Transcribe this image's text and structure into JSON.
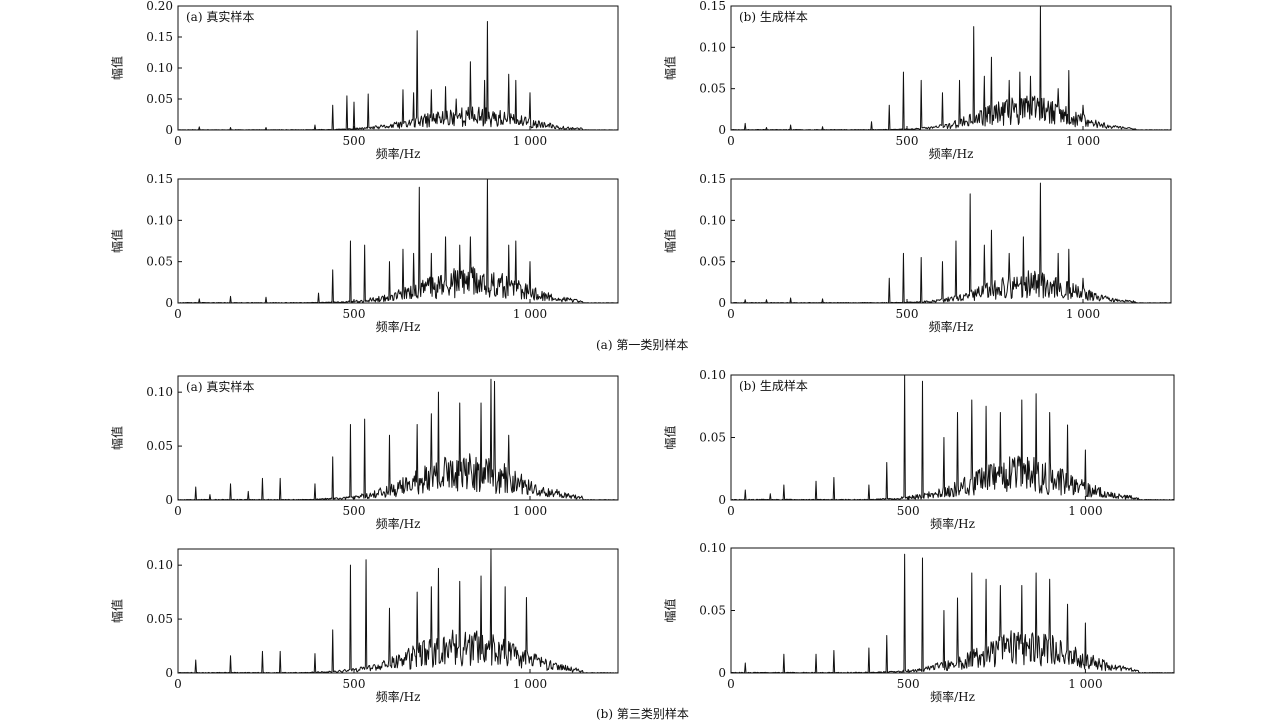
{
  "figure": {
    "captions": [
      "(a)  第一类别样本",
      "(b)  第三类别样本"
    ]
  },
  "chart_data": [
    {
      "type": "line",
      "group": 0,
      "panel_label": "(a)  真实样本",
      "xlabel": "频率/Hz",
      "ylabel": "幅值",
      "xlim": [
        0,
        1250
      ],
      "ylim": [
        0,
        0.2
      ],
      "xticks": [
        0,
        500,
        1000
      ],
      "xtick_labels": [
        "0",
        "500",
        "1 000"
      ],
      "yticks": [
        0,
        0.05,
        0.1,
        0.15,
        0.2
      ],
      "ytick_labels": [
        "0",
        "0.05",
        "0.10",
        "0.15",
        "0.20"
      ],
      "envelope_center": 830,
      "envelope_width": 200,
      "base_level": 0.022,
      "seed": 11,
      "peaks": [
        [
          60,
          0.005
        ],
        [
          150,
          0.004
        ],
        [
          250,
          0.004
        ],
        [
          390,
          0.008
        ],
        [
          440,
          0.04
        ],
        [
          480,
          0.055
        ],
        [
          500,
          0.045
        ],
        [
          540,
          0.058
        ],
        [
          640,
          0.065
        ],
        [
          670,
          0.06
        ],
        [
          680,
          0.16
        ],
        [
          720,
          0.065
        ],
        [
          760,
          0.07
        ],
        [
          790,
          0.05
        ],
        [
          830,
          0.11
        ],
        [
          870,
          0.08
        ],
        [
          880,
          0.175
        ],
        [
          940,
          0.09
        ],
        [
          960,
          0.08
        ],
        [
          1000,
          0.06
        ]
      ]
    },
    {
      "type": "line",
      "group": 0,
      "panel_label": "(b)  生成样本",
      "xlabel": "频率/Hz",
      "ylabel": "幅值",
      "xlim": [
        0,
        1250
      ],
      "ylim": [
        0,
        0.15
      ],
      "xticks": [
        0,
        500,
        1000
      ],
      "xtick_labels": [
        "0",
        "500",
        "1 000"
      ],
      "yticks": [
        0,
        0.05,
        0.1,
        0.15
      ],
      "ytick_labels": [
        "0",
        "0.05",
        "0.10",
        "0.15"
      ],
      "envelope_center": 840,
      "envelope_width": 180,
      "base_level": 0.024,
      "seed": 23,
      "peaks": [
        [
          40,
          0.008
        ],
        [
          100,
          0.003
        ],
        [
          170,
          0.006
        ],
        [
          260,
          0.004
        ],
        [
          400,
          0.01
        ],
        [
          450,
          0.03
        ],
        [
          490,
          0.07
        ],
        [
          540,
          0.06
        ],
        [
          600,
          0.045
        ],
        [
          650,
          0.06
        ],
        [
          690,
          0.125
        ],
        [
          720,
          0.065
        ],
        [
          740,
          0.088
        ],
        [
          790,
          0.06
        ],
        [
          820,
          0.07
        ],
        [
          850,
          0.065
        ],
        [
          880,
          0.15
        ],
        [
          930,
          0.05
        ],
        [
          960,
          0.072
        ],
        [
          1000,
          0.03
        ]
      ]
    },
    {
      "type": "line",
      "group": 0,
      "panel_label": "",
      "xlabel": "频率/Hz",
      "ylabel": "幅值",
      "xlim": [
        0,
        1250
      ],
      "ylim": [
        0,
        0.15
      ],
      "xticks": [
        0,
        500,
        1000
      ],
      "xtick_labels": [
        "0",
        "500",
        "1 000"
      ],
      "yticks": [
        0,
        0.05,
        0.1,
        0.15
      ],
      "ytick_labels": [
        "0",
        "0.05",
        "0.10",
        "0.15"
      ],
      "envelope_center": 830,
      "envelope_width": 200,
      "base_level": 0.025,
      "seed": 37,
      "peaks": [
        [
          60,
          0.005
        ],
        [
          150,
          0.008
        ],
        [
          250,
          0.007
        ],
        [
          400,
          0.012
        ],
        [
          440,
          0.04
        ],
        [
          490,
          0.075
        ],
        [
          530,
          0.07
        ],
        [
          600,
          0.05
        ],
        [
          640,
          0.065
        ],
        [
          670,
          0.06
        ],
        [
          685,
          0.14
        ],
        [
          720,
          0.06
        ],
        [
          760,
          0.08
        ],
        [
          800,
          0.07
        ],
        [
          830,
          0.08
        ],
        [
          880,
          0.15
        ],
        [
          940,
          0.07
        ],
        [
          960,
          0.075
        ],
        [
          1000,
          0.05
        ]
      ]
    },
    {
      "type": "line",
      "group": 0,
      "panel_label": "",
      "xlabel": "频率/Hz",
      "ylabel": "幅值",
      "xlim": [
        0,
        1250
      ],
      "ylim": [
        0,
        0.15
      ],
      "xticks": [
        0,
        500,
        1000
      ],
      "xtick_labels": [
        "0",
        "500",
        "1 000"
      ],
      "yticks": [
        0,
        0.05,
        0.1,
        0.15
      ],
      "ytick_labels": [
        "0",
        "0.05",
        "0.10",
        "0.15"
      ],
      "envelope_center": 850,
      "envelope_width": 175,
      "base_level": 0.022,
      "seed": 41,
      "peaks": [
        [
          40,
          0.004
        ],
        [
          100,
          0.004
        ],
        [
          170,
          0.006
        ],
        [
          260,
          0.005
        ],
        [
          450,
          0.03
        ],
        [
          490,
          0.06
        ],
        [
          540,
          0.055
        ],
        [
          600,
          0.05
        ],
        [
          640,
          0.075
        ],
        [
          680,
          0.132
        ],
        [
          720,
          0.07
        ],
        [
          740,
          0.088
        ],
        [
          790,
          0.06
        ],
        [
          830,
          0.08
        ],
        [
          880,
          0.145
        ],
        [
          930,
          0.06
        ],
        [
          960,
          0.065
        ],
        [
          1000,
          0.03
        ]
      ]
    },
    {
      "type": "line",
      "group": 1,
      "panel_label": "(a)  真实样本",
      "xlabel": "频率/Hz",
      "ylabel": "幅值",
      "xlim": [
        0,
        1250
      ],
      "ylim": [
        0,
        0.115
      ],
      "xticks": [
        0,
        500,
        1000
      ],
      "xtick_labels": [
        "0",
        "500",
        "1 000"
      ],
      "yticks": [
        0,
        0.05,
        0.1
      ],
      "ytick_labels": [
        "0",
        "0.05",
        "0.10"
      ],
      "envelope_center": 820,
      "envelope_width": 210,
      "base_level": 0.025,
      "seed": 53,
      "peaks": [
        [
          50,
          0.012
        ],
        [
          90,
          0.005
        ],
        [
          150,
          0.015
        ],
        [
          200,
          0.008
        ],
        [
          240,
          0.02
        ],
        [
          290,
          0.02
        ],
        [
          390,
          0.015
        ],
        [
          440,
          0.04
        ],
        [
          490,
          0.07
        ],
        [
          530,
          0.075
        ],
        [
          600,
          0.06
        ],
        [
          680,
          0.07
        ],
        [
          720,
          0.08
        ],
        [
          740,
          0.1
        ],
        [
          800,
          0.09
        ],
        [
          860,
          0.09
        ],
        [
          890,
          0.112
        ],
        [
          900,
          0.11
        ],
        [
          940,
          0.06
        ]
      ]
    },
    {
      "type": "line",
      "group": 1,
      "panel_label": "(b)  生成样本",
      "xlabel": "频率/Hz",
      "ylabel": "幅值",
      "xlim": [
        0,
        1250
      ],
      "ylim": [
        0,
        0.1
      ],
      "xticks": [
        0,
        500,
        1000
      ],
      "xtick_labels": [
        "0",
        "500",
        "1 000"
      ],
      "yticks": [
        0,
        0.05,
        0.1
      ],
      "ytick_labels": [
        "0",
        "0.05",
        "0.10"
      ],
      "envelope_center": 820,
      "envelope_width": 200,
      "base_level": 0.02,
      "seed": 67,
      "peaks": [
        [
          40,
          0.008
        ],
        [
          110,
          0.005
        ],
        [
          150,
          0.012
        ],
        [
          240,
          0.015
        ],
        [
          290,
          0.018
        ],
        [
          390,
          0.012
        ],
        [
          440,
          0.03
        ],
        [
          490,
          0.1
        ],
        [
          540,
          0.095
        ],
        [
          600,
          0.05
        ],
        [
          640,
          0.07
        ],
        [
          680,
          0.08
        ],
        [
          720,
          0.075
        ],
        [
          760,
          0.07
        ],
        [
          820,
          0.08
        ],
        [
          860,
          0.085
        ],
        [
          900,
          0.07
        ],
        [
          950,
          0.06
        ],
        [
          1000,
          0.04
        ]
      ]
    },
    {
      "type": "line",
      "group": 1,
      "panel_label": "",
      "xlabel": "频率/Hz",
      "ylabel": "幅值",
      "xlim": [
        0,
        1250
      ],
      "ylim": [
        0,
        0.115
      ],
      "xticks": [
        0,
        500,
        1000
      ],
      "xtick_labels": [
        "0",
        "500",
        "1 000"
      ],
      "yticks": [
        0,
        0.05,
        0.1
      ],
      "ytick_labels": [
        "0",
        "0.05",
        "0.10"
      ],
      "envelope_center": 820,
      "envelope_width": 210,
      "base_level": 0.024,
      "seed": 71,
      "peaks": [
        [
          50,
          0.012
        ],
        [
          150,
          0.016
        ],
        [
          240,
          0.02
        ],
        [
          290,
          0.02
        ],
        [
          390,
          0.018
        ],
        [
          440,
          0.04
        ],
        [
          490,
          0.1
        ],
        [
          535,
          0.105
        ],
        [
          600,
          0.06
        ],
        [
          680,
          0.075
        ],
        [
          720,
          0.08
        ],
        [
          740,
          0.097
        ],
        [
          800,
          0.085
        ],
        [
          860,
          0.09
        ],
        [
          890,
          0.115
        ],
        [
          930,
          0.08
        ],
        [
          990,
          0.07
        ]
      ]
    },
    {
      "type": "line",
      "group": 1,
      "panel_label": "",
      "xlabel": "频率/Hz",
      "ylabel": "幅值",
      "xlim": [
        0,
        1250
      ],
      "ylim": [
        0,
        0.1
      ],
      "xticks": [
        0,
        500,
        1000
      ],
      "xtick_labels": [
        "0",
        "500",
        "1 000"
      ],
      "yticks": [
        0,
        0.05,
        0.1
      ],
      "ytick_labels": [
        "0",
        "0.05",
        "0.10"
      ],
      "envelope_center": 830,
      "envelope_width": 200,
      "base_level": 0.02,
      "seed": 83,
      "peaks": [
        [
          40,
          0.008
        ],
        [
          150,
          0.015
        ],
        [
          240,
          0.015
        ],
        [
          290,
          0.018
        ],
        [
          390,
          0.02
        ],
        [
          440,
          0.03
        ],
        [
          490,
          0.095
        ],
        [
          540,
          0.092
        ],
        [
          600,
          0.05
        ],
        [
          640,
          0.06
        ],
        [
          680,
          0.08
        ],
        [
          720,
          0.075
        ],
        [
          760,
          0.07
        ],
        [
          820,
          0.07
        ],
        [
          860,
          0.08
        ],
        [
          900,
          0.075
        ],
        [
          950,
          0.055
        ],
        [
          1000,
          0.04
        ]
      ]
    }
  ]
}
